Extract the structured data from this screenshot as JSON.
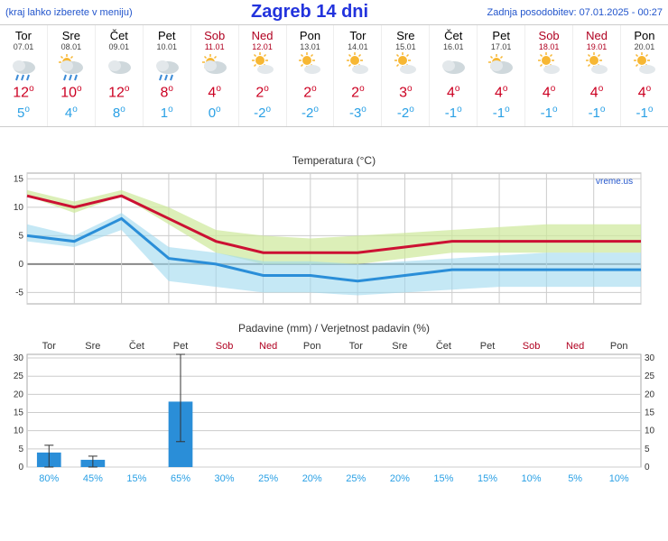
{
  "header": {
    "menu_hint": "(kraj lahko izberete v meniju)",
    "title": "Zagreb 14 dni",
    "updated": "Zadnja posodobitev: 07.01.2025 - 00:27"
  },
  "days": [
    {
      "dow": "Tor",
      "date": "07.01",
      "weekend": false,
      "icon": "rain",
      "hi": 12,
      "lo": 5
    },
    {
      "dow": "Sre",
      "date": "08.01",
      "weekend": false,
      "icon": "sunrain",
      "hi": 10,
      "lo": 4
    },
    {
      "dow": "Čet",
      "date": "09.01",
      "weekend": false,
      "icon": "cloud",
      "hi": 12,
      "lo": 8
    },
    {
      "dow": "Pet",
      "date": "10.01",
      "weekend": false,
      "icon": "rain",
      "hi": 8,
      "lo": 1
    },
    {
      "dow": "Sob",
      "date": "11.01",
      "weekend": true,
      "icon": "partcloud",
      "hi": 4,
      "lo": 0
    },
    {
      "dow": "Ned",
      "date": "12.01",
      "weekend": true,
      "icon": "suncloud",
      "hi": 2,
      "lo": -2
    },
    {
      "dow": "Pon",
      "date": "13.01",
      "weekend": false,
      "icon": "suncloud",
      "hi": 2,
      "lo": -2
    },
    {
      "dow": "Tor",
      "date": "14.01",
      "weekend": false,
      "icon": "suncloud",
      "hi": 2,
      "lo": -3
    },
    {
      "dow": "Sre",
      "date": "15.01",
      "weekend": false,
      "icon": "suncloud",
      "hi": 3,
      "lo": -2
    },
    {
      "dow": "Čet",
      "date": "16.01",
      "weekend": false,
      "icon": "cloud",
      "hi": 4,
      "lo": -1
    },
    {
      "dow": "Pet",
      "date": "17.01",
      "weekend": false,
      "icon": "partcloud",
      "hi": 4,
      "lo": -1
    },
    {
      "dow": "Sob",
      "date": "18.01",
      "weekend": true,
      "icon": "suncloud",
      "hi": 4,
      "lo": -1
    },
    {
      "dow": "Ned",
      "date": "19.01",
      "weekend": true,
      "icon": "suncloud",
      "hi": 4,
      "lo": -1
    },
    {
      "dow": "Pon",
      "date": "20.01",
      "weekend": false,
      "icon": "suncloud",
      "hi": 4,
      "lo": -1
    }
  ],
  "temp_chart": {
    "title": "Temperatura (°C)",
    "credit": "vreme.us",
    "ylim": [
      -7,
      16
    ],
    "yticks": [
      -5,
      0,
      5,
      10,
      15
    ],
    "hi_band_upper": [
      13,
      11,
      13,
      10,
      6,
      5,
      4.5,
      5,
      5.5,
      6,
      6.5,
      7,
      7,
      7
    ],
    "hi_band_lower": [
      12,
      9,
      12,
      7,
      2,
      0,
      0,
      0,
      1,
      2,
      2,
      2,
      2,
      2
    ],
    "lo_band_upper": [
      7,
      5,
      9,
      3,
      2,
      0.5,
      0.5,
      0,
      0.5,
      1,
      1.5,
      2,
      2,
      2
    ],
    "lo_band_lower": [
      4,
      3,
      6,
      -3,
      -4,
      -5,
      -5,
      -5.5,
      -5,
      -4.5,
      -4,
      -4,
      -4,
      -4
    ],
    "hi": [
      12,
      10,
      12,
      8,
      4,
      2,
      2,
      2,
      3,
      4,
      4,
      4,
      4,
      4
    ],
    "lo": [
      5,
      4,
      8,
      1,
      0,
      -2,
      -2,
      -3,
      -2,
      -1,
      -1,
      -1,
      -1,
      -1
    ],
    "colors": {
      "hi_line": "#cc1133",
      "lo_line": "#2a8ed8",
      "hi_band": "#cde89a",
      "lo_band": "#9ed8ef",
      "grid": "#cccccc",
      "zero": "#888888",
      "bg": "#ffffff"
    }
  },
  "precip_chart": {
    "title": "Padavine (mm) / Verjetnost padavin (%)",
    "ylim": [
      0,
      31
    ],
    "yticks": [
      0,
      5,
      10,
      15,
      20,
      25,
      30
    ],
    "bars": [
      {
        "mm": 4,
        "lo": 0,
        "hi": 6,
        "prob": 80
      },
      {
        "mm": 2,
        "lo": 0,
        "hi": 3,
        "prob": 45
      },
      {
        "mm": 0,
        "lo": 0,
        "hi": 0,
        "prob": 15
      },
      {
        "mm": 18,
        "lo": 7,
        "hi": 31,
        "prob": 65
      },
      {
        "mm": 0,
        "lo": 0,
        "hi": 0,
        "prob": 30
      },
      {
        "mm": 0,
        "lo": 0,
        "hi": 0,
        "prob": 25
      },
      {
        "mm": 0,
        "lo": 0,
        "hi": 0,
        "prob": 20
      },
      {
        "mm": 0,
        "lo": 0,
        "hi": 0,
        "prob": 25
      },
      {
        "mm": 0,
        "lo": 0,
        "hi": 0,
        "prob": 20
      },
      {
        "mm": 0,
        "lo": 0,
        "hi": 0,
        "prob": 15
      },
      {
        "mm": 0,
        "lo": 0,
        "hi": 0,
        "prob": 15
      },
      {
        "mm": 0,
        "lo": 0,
        "hi": 0,
        "prob": 10
      },
      {
        "mm": 0,
        "lo": 0,
        "hi": 0,
        "prob": 5
      },
      {
        "mm": 0,
        "lo": 0,
        "hi": 0,
        "prob": 10
      }
    ],
    "colors": {
      "bar": "#2a8ed8",
      "whisker": "#333333",
      "grid": "#cccccc",
      "prob": "#2aa0e5"
    }
  }
}
